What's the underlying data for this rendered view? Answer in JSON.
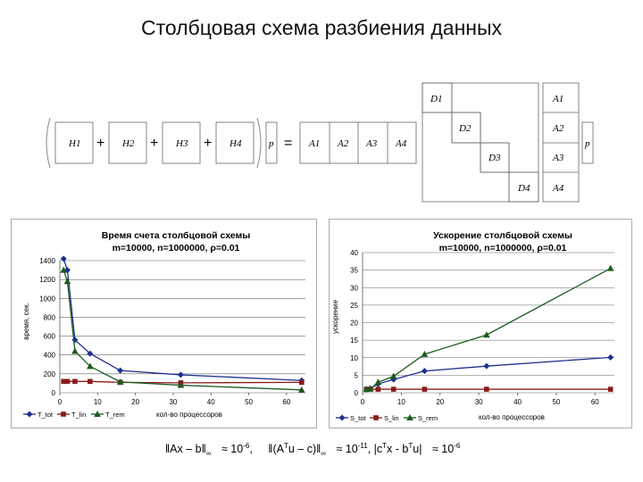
{
  "page": {
    "title": "Столбцовая схема разбиения данных"
  },
  "equation": {
    "h_terms": [
      "H1",
      "H2",
      "H3",
      "H4"
    ],
    "plus": "+",
    "p": "p",
    "equals": "=",
    "a_terms": [
      "A1",
      "A2",
      "A3",
      "A4"
    ],
    "d_terms": [
      "D1",
      "D2",
      "D3",
      "D4"
    ]
  },
  "chart_data": [
    {
      "type": "line",
      "title": "Время счета столбцовой схемы",
      "subtitle": "m=10000, n=1000000, ρ=0.01",
      "xlabel": "кол-во процессоров",
      "ylabel": "время, сек.",
      "xlim": [
        0,
        65
      ],
      "ylim": [
        0,
        1400
      ],
      "x_ticks": [
        0,
        10,
        20,
        30,
        40,
        50,
        60
      ],
      "y_ticks": [
        0,
        200,
        400,
        600,
        800,
        1000,
        1200,
        1400
      ],
      "legend_position": "bottom-left",
      "series": [
        {
          "name": "T_tot",
          "color": "#1f2f8f",
          "marker": "diamond",
          "x": [
            1,
            2,
            4,
            8,
            16,
            32,
            64
          ],
          "y": [
            1420,
            1300,
            560,
            415,
            235,
            190,
            130
          ]
        },
        {
          "name": "T_lin",
          "color": "#8b1a1a",
          "marker": "square",
          "x": [
            1,
            2,
            4,
            8,
            16,
            32,
            64
          ],
          "y": [
            120,
            120,
            120,
            120,
            110,
            105,
            110
          ]
        },
        {
          "name": "T_rem",
          "color": "#1d5a1d",
          "marker": "triangle",
          "x": [
            1,
            2,
            4,
            8,
            16,
            32,
            64
          ],
          "y": [
            1300,
            1180,
            440,
            280,
            115,
            80,
            30
          ]
        }
      ]
    },
    {
      "type": "line",
      "title": "Ускорение столбцовой схемы",
      "subtitle": "m=10000, n=1000000, ρ=0.01",
      "xlabel": "кол-во процессоров",
      "ylabel": "ускорение",
      "xlim": [
        0,
        65
      ],
      "ylim": [
        0,
        40
      ],
      "x_ticks": [
        0,
        10,
        20,
        30,
        40,
        50,
        60
      ],
      "y_ticks": [
        0,
        5,
        10,
        15,
        20,
        25,
        30,
        35,
        40
      ],
      "legend_position": "bottom-left",
      "series": [
        {
          "name": "S_tot",
          "color": "#1f2f8f",
          "marker": "diamond",
          "x": [
            1,
            2,
            4,
            8,
            16,
            32,
            64
          ],
          "y": [
            1,
            1.2,
            2.5,
            3.8,
            6.2,
            7.6,
            10.1
          ]
        },
        {
          "name": "S_lin",
          "color": "#8b1a1a",
          "marker": "square",
          "x": [
            1,
            2,
            4,
            8,
            16,
            32,
            64
          ],
          "y": [
            1,
            1,
            1,
            1,
            1,
            1,
            1
          ]
        },
        {
          "name": "S_rem",
          "color": "#1d5a1d",
          "marker": "triangle",
          "x": [
            1,
            2,
            4,
            8,
            16,
            32,
            64
          ],
          "y": [
            1,
            1.1,
            3,
            4.7,
            11,
            16.5,
            35.5
          ]
        }
      ]
    }
  ],
  "formula": {
    "part1": "‖Ax – b‖",
    "sub1": "∞",
    "approx1": "≈ 10",
    "exp1": "-6",
    "sep1": ",",
    "part2": "‖(A",
    "sup2": "T",
    "part2b": "u – c)‖",
    "sub2": "∞",
    "approx2": "≈ 10",
    "exp2": "-11",
    "part3": ", |c",
    "sup3": "T",
    "part3b": "x - b",
    "sup3b": "T",
    "part3c": "u|",
    "approx3": "≈ 10",
    "exp3": "-6"
  }
}
